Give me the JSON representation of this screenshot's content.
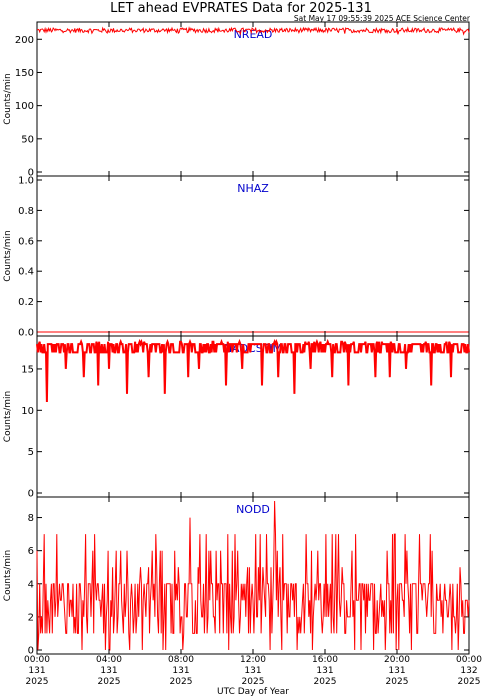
{
  "header": {
    "title": "LET ahead EVPRATES Data for 2025-131",
    "timestamp": "Sat May 17 09:55:39 2025 ACE Science Center"
  },
  "colors": {
    "data": "#ff0000",
    "panel_label": "#0000cc",
    "axis": "#000000"
  },
  "chart_data": [
    {
      "type": "line",
      "series": [
        {
          "name": "NREAD",
          "values_summary": "mostly ~212-216 counts/min throughout the day"
        }
      ],
      "ylabel": "Counts/min",
      "ylim": [
        0,
        220
      ],
      "yticks": [
        0,
        50,
        100,
        150,
        200
      ],
      "xlim": [
        0,
        24
      ]
    },
    {
      "type": "line",
      "series": [
        {
          "name": "NHAZ",
          "values_summary": "0 counts/min throughout the day"
        }
      ],
      "ylabel": "Counts/min",
      "ylim": [
        0,
        1.0
      ],
      "yticks": [
        0.0,
        0.2,
        0.4,
        0.6,
        0.8,
        1.0
      ],
      "xlim": [
        0,
        24
      ]
    },
    {
      "type": "line",
      "series": [
        {
          "name": "NADCSTIM",
          "values_summary": "mostly 17-18 counts/min with occasional drops",
          "drops": [
            {
              "x": 0.55,
              "y": 11
            },
            {
              "x": 1.6,
              "y": 15
            },
            {
              "x": 2.6,
              "y": 14
            },
            {
              "x": 3.4,
              "y": 13
            },
            {
              "x": 4.0,
              "y": 15
            },
            {
              "x": 5.0,
              "y": 12
            },
            {
              "x": 6.2,
              "y": 14
            },
            {
              "x": 7.1,
              "y": 12
            },
            {
              "x": 8.4,
              "y": 14
            },
            {
              "x": 9.0,
              "y": 15
            },
            {
              "x": 10.5,
              "y": 13
            },
            {
              "x": 11.4,
              "y": 15
            },
            {
              "x": 12.5,
              "y": 13
            },
            {
              "x": 13.4,
              "y": 14
            },
            {
              "x": 14.3,
              "y": 12
            },
            {
              "x": 15.2,
              "y": 15
            },
            {
              "x": 16.4,
              "y": 14
            },
            {
              "x": 17.3,
              "y": 13
            },
            {
              "x": 18.8,
              "y": 14
            },
            {
              "x": 19.6,
              "y": 14
            },
            {
              "x": 20.5,
              "y": 15
            },
            {
              "x": 21.9,
              "y": 13
            },
            {
              "x": 23.0,
              "y": 14
            }
          ]
        }
      ],
      "ylabel": "Counts/min",
      "ylim": [
        0,
        18.5
      ],
      "yticks": [
        0,
        5,
        10,
        15
      ],
      "xlim": [
        0,
        24
      ]
    },
    {
      "type": "line",
      "series": [
        {
          "name": "NODD",
          "values_summary": "fluctuates 0-8 counts/min, typically 1-4, peak 9"
        }
      ],
      "ylabel": "Counts/min",
      "ylim": [
        0,
        9
      ],
      "yticks": [
        0,
        2,
        4,
        6,
        8
      ],
      "xlim": [
        0,
        24
      ]
    }
  ],
  "x_axis": {
    "label": "UTC Day of Year",
    "ticks": [
      {
        "x": 0,
        "time": "00:00",
        "doy": "131",
        "year": "2025"
      },
      {
        "x": 4,
        "time": "04:00",
        "doy": "131",
        "year": "2025"
      },
      {
        "x": 8,
        "time": "08:00",
        "doy": "131",
        "year": "2025"
      },
      {
        "x": 12,
        "time": "12:00",
        "doy": "131",
        "year": "2025"
      },
      {
        "x": 16,
        "time": "16:00",
        "doy": "131",
        "year": "2025"
      },
      {
        "x": 20,
        "time": "20:00",
        "doy": "131",
        "year": "2025"
      },
      {
        "x": 24,
        "time": "00:00",
        "doy": "132",
        "year": "2025"
      }
    ]
  }
}
